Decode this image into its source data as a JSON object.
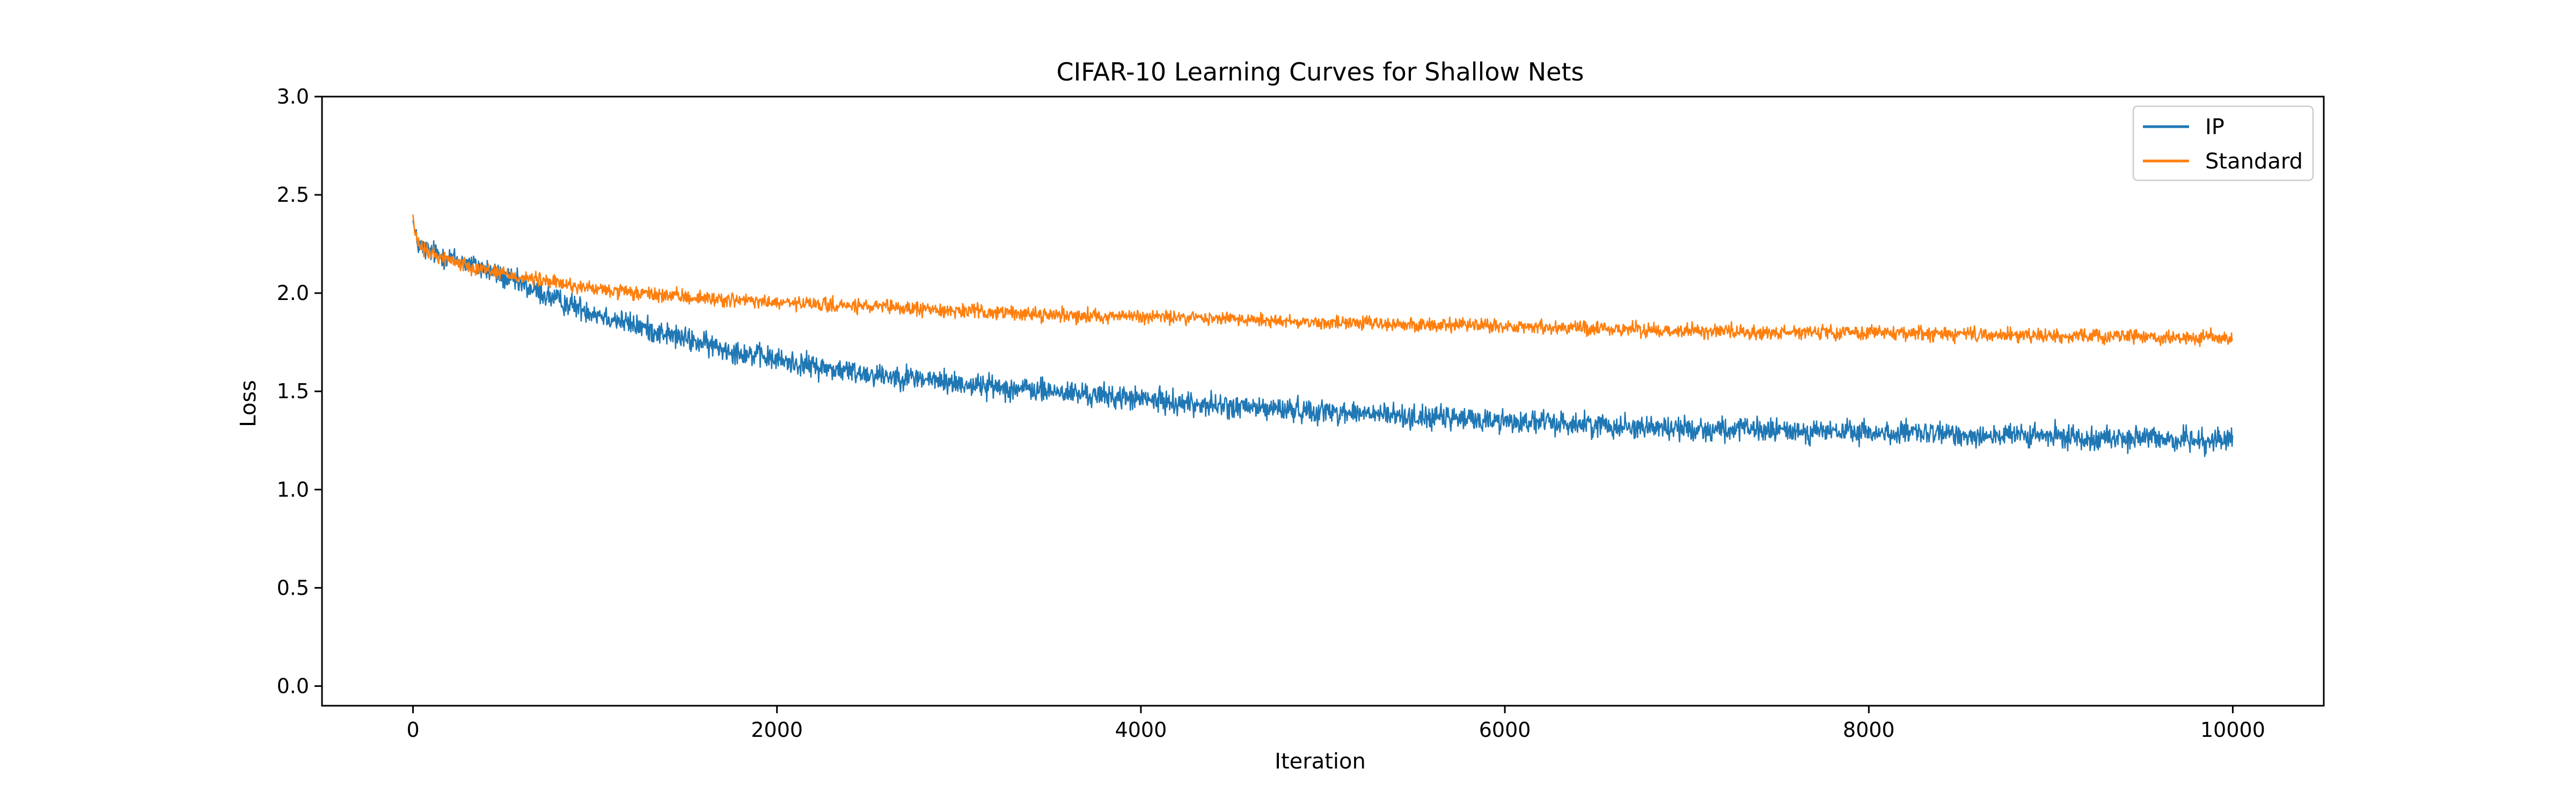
{
  "chart_data": {
    "type": "line",
    "title": "CIFAR-10 Learning Curves for Shallow Nets",
    "xlabel": "Iteration",
    "ylabel": "Loss",
    "xlim": [
      -500,
      10500
    ],
    "ylim": [
      -0.1,
      3.0
    ],
    "x_ticks": [
      0,
      2000,
      4000,
      6000,
      8000,
      10000
    ],
    "x_tick_labels": [
      "0",
      "2000",
      "4000",
      "6000",
      "8000",
      "10000"
    ],
    "y_ticks": [
      0.0,
      0.5,
      1.0,
      1.5,
      2.0,
      2.5,
      3.0
    ],
    "y_tick_labels": [
      "0.0",
      "0.5",
      "1.0",
      "1.5",
      "2.0",
      "2.5",
      "3.0"
    ],
    "grid": false,
    "legend_position": "top-right",
    "series": [
      {
        "name": "IP",
        "color": "#1f77b4",
        "noise": 0.03,
        "x": [
          0,
          20,
          50,
          100,
          200,
          300,
          400,
          500,
          600,
          700,
          800,
          1000,
          1200,
          1400,
          1600,
          1800,
          2000,
          2250,
          2500,
          2750,
          3000,
          3500,
          4000,
          4500,
          5000,
          5500,
          6000,
          6500,
          7000,
          7500,
          8000,
          8500,
          9000,
          9500,
          10000
        ],
        "y": [
          2.37,
          2.26,
          2.23,
          2.21,
          2.18,
          2.15,
          2.12,
          2.08,
          2.04,
          2.0,
          1.96,
          1.9,
          1.84,
          1.79,
          1.74,
          1.7,
          1.66,
          1.62,
          1.59,
          1.57,
          1.54,
          1.5,
          1.46,
          1.42,
          1.4,
          1.37,
          1.35,
          1.33,
          1.31,
          1.3,
          1.29,
          1.28,
          1.27,
          1.26,
          1.25
        ]
      },
      {
        "name": "Standard",
        "color": "#ff7f0e",
        "noise": 0.018,
        "x": [
          0,
          10,
          30,
          60,
          100,
          200,
          300,
          400,
          500,
          600,
          800,
          1000,
          1200,
          1500,
          2000,
          2500,
          3000,
          3500,
          4000,
          4500,
          5000,
          5500,
          6000,
          6500,
          7000,
          7500,
          8000,
          8500,
          9000,
          9500,
          10000
        ],
        "y": [
          2.4,
          2.3,
          2.25,
          2.22,
          2.2,
          2.17,
          2.14,
          2.12,
          2.1,
          2.08,
          2.05,
          2.02,
          2.0,
          1.98,
          1.95,
          1.93,
          1.91,
          1.89,
          1.88,
          1.87,
          1.85,
          1.84,
          1.83,
          1.82,
          1.81,
          1.8,
          1.8,
          1.79,
          1.78,
          1.78,
          1.77
        ]
      }
    ]
  }
}
